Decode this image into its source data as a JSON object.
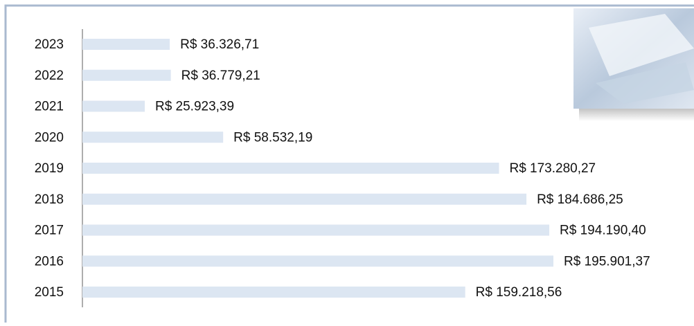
{
  "chart_data": {
    "type": "bar",
    "orientation": "horizontal",
    "categories": [
      "2023",
      "2022",
      "2021",
      "2020",
      "2019",
      "2018",
      "2017",
      "2016",
      "2015"
    ],
    "values": [
      36326.71,
      36779.21,
      25923.39,
      58532.19,
      173280.27,
      184686.25,
      194190.4,
      195901.37,
      159218.56
    ],
    "value_labels": [
      "R$ 36.326,71",
      "R$ 36.779,21",
      "R$ 25.923,39",
      "R$ 58.532,19",
      "R$ 173.280,27",
      "R$ 184.686,25",
      "R$ 194.190,40",
      "R$ 195.901,37",
      "R$ 159.218,56"
    ],
    "color": "#dce6f2"
  }
}
